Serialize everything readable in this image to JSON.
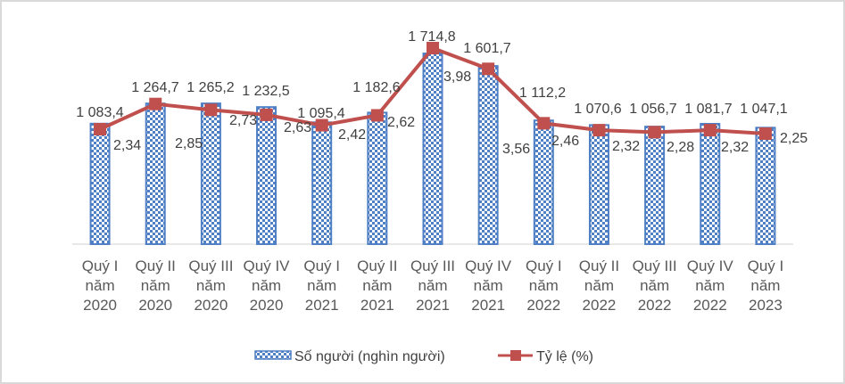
{
  "chart_data": {
    "type": "bar",
    "combo": "bar+line",
    "title": "",
    "categories": [
      [
        "Quý I",
        "năm",
        "2020"
      ],
      [
        "Quý II",
        "năm",
        "2020"
      ],
      [
        "Quý III",
        "năm",
        "2020"
      ],
      [
        "Quý IV",
        "năm",
        "2020"
      ],
      [
        "Quý I",
        "năm",
        "2021"
      ],
      [
        "Quý II",
        "năm",
        "2021"
      ],
      [
        "Quý III",
        "năm",
        "2021"
      ],
      [
        "Quý IV",
        "năm",
        "2021"
      ],
      [
        "Quý I",
        "năm",
        "2022"
      ],
      [
        "Quý II",
        "năm",
        "2022"
      ],
      [
        "Quý III",
        "năm",
        "2022"
      ],
      [
        "Quý IV",
        "năm",
        "2022"
      ],
      [
        "Quý I",
        "năm",
        "2023"
      ]
    ],
    "series": [
      {
        "name": "Số người (nghìn người)",
        "type": "bar",
        "axis": "primary",
        "values": [
          1083.4,
          1264.7,
          1265.2,
          1232.5,
          1095.4,
          1182.6,
          1714.8,
          1601.7,
          1112.2,
          1070.6,
          1056.7,
          1081.7,
          1047.1
        ],
        "labels": [
          "1 083,4",
          "1 264,7",
          "1 265,2",
          "1 232,5",
          "1 095,4",
          "1 182,6",
          "1 714,8",
          "1 601,7",
          "1 112,2",
          "1 070,6",
          "1 056,7",
          "1 081,7",
          "1 047,1"
        ],
        "color": "#4f7fc4",
        "pattern": "checkerboard"
      },
      {
        "name": "Tỷ lệ (%)",
        "type": "line",
        "axis": "secondary",
        "values": [
          2.34,
          2.85,
          2.73,
          2.63,
          2.42,
          2.62,
          3.98,
          3.56,
          2.46,
          2.32,
          2.28,
          2.32,
          2.25
        ],
        "labels": [
          "2,34",
          "2,85",
          "2,73",
          "2,63",
          "2,42",
          "2,62",
          "3,98",
          "3,56",
          "2,46",
          "2,32",
          "2,28",
          "2,32",
          "2,25"
        ],
        "color": "#c0504d",
        "marker": "square"
      }
    ],
    "xlabel": "",
    "ylabel": "",
    "axes_visible": false,
    "grid": false,
    "legend": {
      "position": "bottom",
      "entries": [
        "Số người (nghìn người)",
        "Tỷ lệ (%)"
      ]
    }
  },
  "legend": {
    "bar_label": "Số người (nghìn người)",
    "line_label": "Tỷ lệ (%)"
  }
}
